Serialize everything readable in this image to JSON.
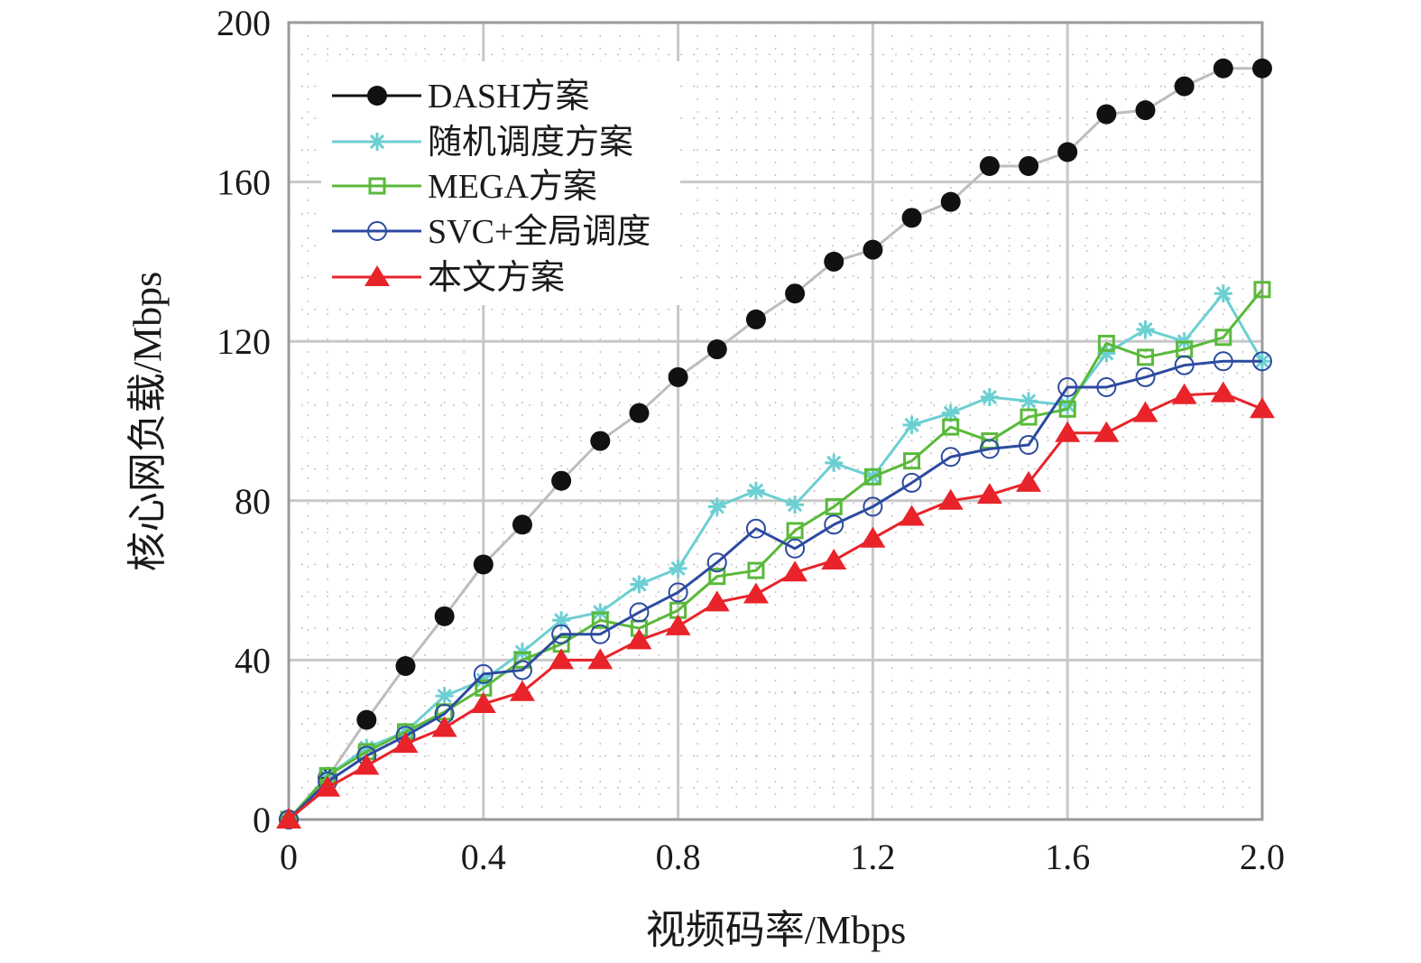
{
  "chart_data": {
    "type": "line",
    "title": "",
    "xlabel": "视频码率/Mbps",
    "ylabel": "核心网负载/Mbps",
    "xlim": [
      0,
      2.0
    ],
    "ylim": [
      0,
      200
    ],
    "xticks": [
      0,
      0.4,
      0.8,
      1.2,
      1.6,
      2.0
    ],
    "xtick_labels": [
      "0",
      "0.4",
      "0.8",
      "1.2",
      "1.6",
      "2.0"
    ],
    "yticks": [
      0,
      40,
      80,
      120,
      160,
      200
    ],
    "ytick_labels": [
      "0",
      "40",
      "80",
      "120",
      "160",
      "200"
    ],
    "grid": "major solid, minor dotted",
    "legend_position": "top-left",
    "x": [
      0,
      0.08,
      0.16,
      0.24,
      0.32,
      0.4,
      0.48,
      0.56,
      0.64,
      0.72,
      0.8,
      0.88,
      0.96,
      1.04,
      1.12,
      1.2,
      1.28,
      1.36,
      1.44,
      1.52,
      1.6,
      1.68,
      1.76,
      1.84,
      1.92,
      2.0
    ],
    "series": [
      {
        "name": "DASH方案",
        "line_color": "#bdbdbd",
        "marker_color": "#111111",
        "legend_line_color": "#111111",
        "marker": "filled-circle",
        "values": [
          0,
          10.5,
          25,
          38.5,
          51,
          64,
          74,
          85,
          95,
          102,
          111,
          118,
          125.5,
          132,
          140,
          143,
          151,
          155,
          164,
          164,
          167.5,
          177,
          178,
          184,
          188.5,
          188.5
        ]
      },
      {
        "name": "随机调度方案",
        "line_color": "#6ccfd2",
        "marker_color": "#6ccfd2",
        "legend_line_color": "#6ccfd2",
        "marker": "asterisk",
        "values": [
          0,
          11,
          18,
          22,
          31,
          35,
          42,
          50,
          52,
          59,
          63,
          78.5,
          82.5,
          79,
          89.5,
          86,
          99,
          102,
          106,
          105,
          104,
          117,
          123,
          120,
          132,
          115
        ]
      },
      {
        "name": "MEGA方案",
        "line_color": "#5ab93a",
        "marker_color": "#5ab93a",
        "legend_line_color": "#5ab93a",
        "marker": "open-square",
        "values": [
          0,
          11,
          17,
          22,
          27,
          33,
          40,
          44,
          50,
          48,
          52.5,
          61,
          62.5,
          72.5,
          78.5,
          86,
          90,
          98.5,
          95,
          101,
          103,
          119.5,
          116,
          118,
          121,
          133
        ]
      },
      {
        "name": "SVC+全局调度",
        "line_color": "#2c4aa0",
        "marker_color": "#2c4aa0",
        "legend_line_color": "#2c4aa0",
        "marker": "open-circle",
        "values": [
          0,
          9.5,
          16,
          21,
          26.5,
          36.5,
          37.5,
          46.5,
          46.5,
          52,
          57,
          64.5,
          73,
          68,
          74,
          78.5,
          84.5,
          91,
          93,
          94,
          108.5,
          108.5,
          111,
          114,
          115,
          115
        ]
      },
      {
        "name": "本文方案",
        "line_color": "#e8232a",
        "marker_color": "#e8232a",
        "legend_line_color": "#e8232a",
        "marker": "filled-triangle",
        "values": [
          0,
          8,
          13.5,
          19,
          23,
          29,
          32,
          40,
          40,
          45,
          48.5,
          54.5,
          56.5,
          62,
          65,
          70.5,
          76,
          80,
          81.5,
          84.5,
          97,
          97,
          102,
          106.5,
          107,
          103
        ]
      }
    ]
  }
}
